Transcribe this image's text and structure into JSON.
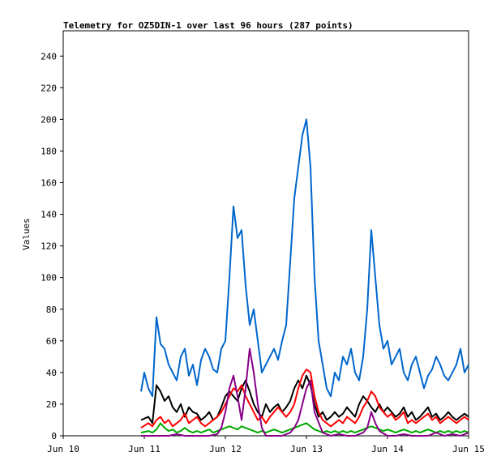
{
  "chart_data": {
    "type": "line",
    "title": "Telemetry for OZ5DIN-1 over last 96 hours (287 points)",
    "xlabel": "",
    "ylabel": "Values",
    "xlim": [
      "Jun 10",
      "Jun 15"
    ],
    "ylim": [
      0,
      256
    ],
    "x_ticks": [
      "Jun 10",
      "Jun 11",
      "Jun 12",
      "Jun 13",
      "Jun 14",
      "Jun 15"
    ],
    "y_ticks": [
      0,
      20,
      40,
      60,
      80,
      100,
      120,
      140,
      160,
      180,
      200,
      220,
      240
    ],
    "grid": false,
    "legend": "none",
    "series": [
      {
        "color": "#0066cc",
        "x": [
          10.96,
          11.0,
          11.05,
          11.1,
          11.15,
          11.2,
          11.25,
          11.3,
          11.35,
          11.4,
          11.45,
          11.5,
          11.55,
          11.6,
          11.65,
          11.7,
          11.75,
          11.8,
          11.85,
          11.9,
          11.95,
          12.0,
          12.05,
          12.1,
          12.15,
          12.2,
          12.25,
          12.3,
          12.35,
          12.4,
          12.45,
          12.5,
          12.55,
          12.6,
          12.65,
          12.7,
          12.75,
          12.8,
          12.85,
          12.9,
          12.95,
          13.0,
          13.05,
          13.1,
          13.15,
          13.2,
          13.25,
          13.3,
          13.35,
          13.4,
          13.45,
          13.5,
          13.55,
          13.6,
          13.65,
          13.7,
          13.75,
          13.8,
          13.85,
          13.9,
          13.95,
          14.0,
          14.05,
          14.1,
          14.15,
          14.2,
          14.25,
          14.3,
          14.35,
          14.4,
          14.45,
          14.5,
          14.55,
          14.6,
          14.65,
          14.7,
          14.75,
          14.8,
          14.85,
          14.9,
          14.95,
          15.0
        ],
        "y": [
          28,
          40,
          30,
          25,
          75,
          58,
          55,
          45,
          40,
          35,
          50,
          55,
          38,
          45,
          32,
          48,
          55,
          50,
          42,
          40,
          55,
          60,
          100,
          145,
          125,
          130,
          95,
          70,
          80,
          60,
          40,
          45,
          50,
          55,
          48,
          60,
          70,
          110,
          150,
          170,
          190,
          200,
          170,
          100,
          60,
          45,
          30,
          25,
          40,
          35,
          50,
          45,
          55,
          40,
          35,
          50,
          80,
          130,
          100,
          70,
          55,
          60,
          45,
          50,
          55,
          40,
          35,
          45,
          50,
          40,
          30,
          38,
          42,
          50,
          45,
          38,
          35,
          40,
          45,
          55,
          40,
          45
        ]
      },
      {
        "color": "#000000",
        "x": [
          10.96,
          11.05,
          11.1,
          11.15,
          11.2,
          11.25,
          11.3,
          11.35,
          11.4,
          11.45,
          11.5,
          11.55,
          11.6,
          11.65,
          11.7,
          11.75,
          11.8,
          11.85,
          11.9,
          11.95,
          12.0,
          12.05,
          12.1,
          12.15,
          12.2,
          12.25,
          12.3,
          12.35,
          12.4,
          12.45,
          12.5,
          12.55,
          12.6,
          12.65,
          12.7,
          12.75,
          12.8,
          12.85,
          12.9,
          12.95,
          13.0,
          13.05,
          13.1,
          13.15,
          13.2,
          13.25,
          13.3,
          13.35,
          13.4,
          13.45,
          13.5,
          13.55,
          13.6,
          13.65,
          13.7,
          13.75,
          13.8,
          13.85,
          13.9,
          13.95,
          14.0,
          14.05,
          14.1,
          14.15,
          14.2,
          14.25,
          14.3,
          14.35,
          14.4,
          14.45,
          14.5,
          14.55,
          14.6,
          14.65,
          14.7,
          14.75,
          14.8,
          14.85,
          14.9,
          14.95,
          15.0
        ],
        "y": [
          10,
          12,
          8,
          32,
          28,
          22,
          25,
          18,
          15,
          20,
          12,
          18,
          15,
          14,
          10,
          12,
          15,
          10,
          12,
          18,
          25,
          28,
          25,
          22,
          30,
          35,
          28,
          20,
          15,
          12,
          20,
          15,
          18,
          20,
          15,
          18,
          22,
          30,
          35,
          30,
          38,
          32,
          20,
          12,
          15,
          10,
          12,
          15,
          12,
          14,
          18,
          15,
          12,
          20,
          25,
          22,
          18,
          15,
          20,
          15,
          18,
          15,
          12,
          14,
          18,
          12,
          15,
          10,
          12,
          15,
          18,
          12,
          14,
          10,
          12,
          15,
          12,
          10,
          12,
          14,
          12
        ]
      },
      {
        "color": "#ff0000",
        "x": [
          10.96,
          11.05,
          11.1,
          11.15,
          11.2,
          11.25,
          11.3,
          11.35,
          11.4,
          11.45,
          11.5,
          11.55,
          11.6,
          11.65,
          11.7,
          11.75,
          11.8,
          11.85,
          11.9,
          11.95,
          12.0,
          12.05,
          12.1,
          12.15,
          12.2,
          12.25,
          12.3,
          12.35,
          12.4,
          12.45,
          12.5,
          12.55,
          12.6,
          12.65,
          12.7,
          12.75,
          12.8,
          12.85,
          12.9,
          12.95,
          13.0,
          13.05,
          13.1,
          13.15,
          13.2,
          13.25,
          13.3,
          13.35,
          13.4,
          13.45,
          13.5,
          13.55,
          13.6,
          13.65,
          13.7,
          13.75,
          13.8,
          13.85,
          13.9,
          13.95,
          14.0,
          14.05,
          14.1,
          14.15,
          14.2,
          14.25,
          14.3,
          14.35,
          14.4,
          14.45,
          14.5,
          14.55,
          14.6,
          14.65,
          14.7,
          14.75,
          14.8,
          14.85,
          14.9,
          14.95,
          15.0
        ],
        "y": [
          5,
          8,
          6,
          10,
          12,
          8,
          10,
          6,
          8,
          10,
          14,
          8,
          10,
          12,
          8,
          6,
          8,
          10,
          12,
          15,
          20,
          25,
          30,
          28,
          32,
          25,
          20,
          15,
          10,
          12,
          8,
          12,
          15,
          18,
          15,
          12,
          15,
          20,
          30,
          38,
          42,
          40,
          25,
          15,
          10,
          8,
          6,
          8,
          10,
          8,
          12,
          10,
          8,
          12,
          18,
          22,
          28,
          25,
          18,
          15,
          12,
          14,
          10,
          12,
          15,
          8,
          10,
          8,
          10,
          12,
          14,
          10,
          12,
          8,
          10,
          12,
          10,
          8,
          10,
          12,
          10
        ]
      },
      {
        "color": "#00aa00",
        "x": [
          10.96,
          11.05,
          11.1,
          11.15,
          11.2,
          11.25,
          11.3,
          11.35,
          11.4,
          11.45,
          11.5,
          11.55,
          11.6,
          11.65,
          11.7,
          11.75,
          11.8,
          11.85,
          11.9,
          11.95,
          12.0,
          12.05,
          12.1,
          12.15,
          12.2,
          12.25,
          12.3,
          12.35,
          12.4,
          12.45,
          12.5,
          12.55,
          12.6,
          12.65,
          12.7,
          12.75,
          12.8,
          12.85,
          12.9,
          12.95,
          13.0,
          13.05,
          13.1,
          13.15,
          13.2,
          13.25,
          13.3,
          13.35,
          13.4,
          13.45,
          13.5,
          13.55,
          13.6,
          13.65,
          13.7,
          13.75,
          13.8,
          13.85,
          13.9,
          13.95,
          14.0,
          14.05,
          14.1,
          14.15,
          14.2,
          14.25,
          14.3,
          14.35,
          14.4,
          14.45,
          14.5,
          14.55,
          14.6,
          14.65,
          14.7,
          14.75,
          14.8,
          14.85,
          14.9,
          14.95,
          15.0
        ],
        "y": [
          2,
          3,
          2,
          4,
          8,
          5,
          3,
          4,
          2,
          3,
          5,
          3,
          2,
          3,
          2,
          3,
          4,
          2,
          3,
          4,
          5,
          6,
          5,
          4,
          6,
          5,
          4,
          3,
          2,
          3,
          2,
          3,
          4,
          3,
          2,
          3,
          4,
          5,
          6,
          7,
          8,
          6,
          4,
          3,
          2,
          3,
          2,
          3,
          2,
          3,
          2,
          3,
          2,
          3,
          4,
          5,
          6,
          5,
          4,
          3,
          4,
          3,
          2,
          3,
          4,
          3,
          2,
          3,
          2,
          3,
          4,
          3,
          2,
          3,
          2,
          3,
          2,
          3,
          2,
          3,
          2
        ]
      },
      {
        "color": "#880088",
        "x": [
          10.96,
          11.1,
          11.2,
          11.3,
          11.4,
          11.5,
          11.6,
          11.7,
          11.8,
          11.9,
          11.95,
          12.0,
          12.05,
          12.1,
          12.15,
          12.2,
          12.25,
          12.3,
          12.35,
          12.4,
          12.45,
          12.5,
          12.55,
          12.6,
          12.7,
          12.8,
          12.85,
          12.9,
          12.95,
          13.0,
          13.05,
          13.1,
          13.2,
          13.3,
          13.4,
          13.5,
          13.6,
          13.7,
          13.75,
          13.8,
          13.85,
          13.9,
          14.0,
          14.1,
          14.2,
          14.3,
          14.4,
          14.5,
          14.6,
          14.7,
          14.8,
          14.9,
          15.0
        ],
        "y": [
          0,
          0,
          0,
          0,
          1,
          0,
          0,
          0,
          0,
          1,
          5,
          15,
          30,
          38,
          25,
          10,
          30,
          55,
          40,
          20,
          5,
          0,
          0,
          0,
          0,
          2,
          5,
          10,
          20,
          30,
          35,
          15,
          2,
          0,
          1,
          0,
          0,
          2,
          5,
          15,
          8,
          3,
          0,
          0,
          1,
          0,
          0,
          0,
          2,
          0,
          1,
          0,
          2
        ]
      }
    ]
  }
}
